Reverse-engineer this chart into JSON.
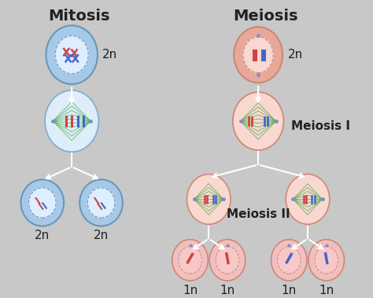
{
  "bg_color": "#c8c8c8",
  "title_mitosis": "Mitosis",
  "title_meiosis": "Meiosis",
  "label_meiosis1": "Meiosis I",
  "label_meiosis2": "Meiosis II",
  "cell_color_blue_outer": "#a8c8e8",
  "cell_color_blue_inner": "#ddeeff",
  "cell_color_salmon_outer": "#e8a898",
  "cell_color_salmon_inner": "#f8d8d0",
  "cell_color_pink_inner": "#f0c0c0",
  "arrow_color": "#ffffff",
  "text_color": "#222222",
  "font_size_title": 14,
  "font_size_label": 11,
  "font_size_ploidy": 11,
  "chrom_red": "#cc4444",
  "chrom_blue": "#4466cc",
  "chrom_green": "#44aa44",
  "spindle_color": "#44aa44"
}
